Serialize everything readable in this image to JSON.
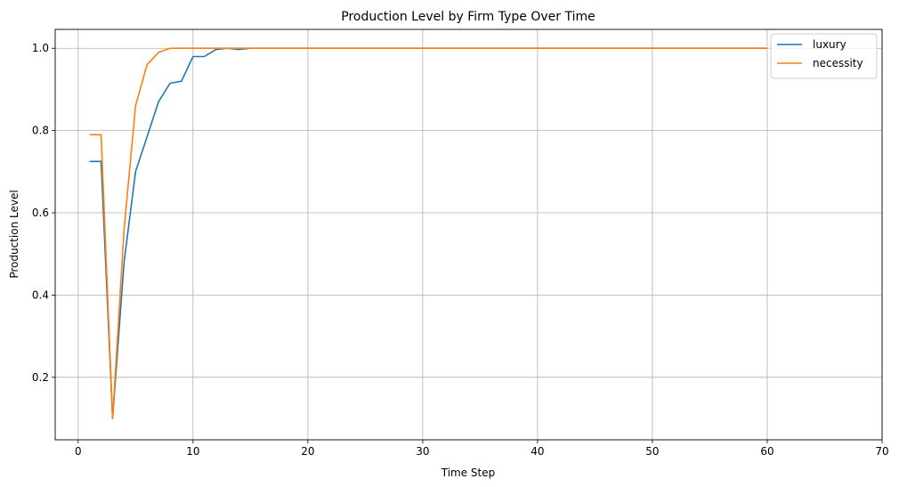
{
  "chart_data": {
    "type": "line",
    "title": "Production Level by Firm Type Over Time",
    "xlabel": "Time Step",
    "ylabel": "Production Level",
    "xlim": [
      -2,
      70
    ],
    "ylim": [
      0.048,
      1.046
    ],
    "xticks": [
      0,
      10,
      20,
      30,
      40,
      50,
      60,
      70
    ],
    "yticks": [
      0.2,
      0.4,
      0.6,
      0.8,
      1.0
    ],
    "xtick_labels": [
      "0",
      "10",
      "20",
      "30",
      "40",
      "50",
      "60",
      "70"
    ],
    "ytick_labels": [
      "0.2",
      "0.4",
      "0.6",
      "0.8",
      "1.0"
    ],
    "grid": true,
    "legend_position": "top-right",
    "series": [
      {
        "name": "luxury",
        "color": "#1f77b4",
        "x": [
          1,
          2,
          3,
          4,
          5,
          6,
          7,
          8,
          9,
          10,
          11,
          12,
          13,
          14,
          15,
          16,
          17,
          18,
          19,
          20,
          21,
          22,
          23,
          24,
          25,
          26,
          27,
          28,
          29,
          30,
          31,
          32,
          33,
          34,
          35,
          36,
          37,
          38,
          39,
          40,
          41,
          42,
          43,
          44,
          45,
          46,
          47,
          48,
          49,
          50,
          51,
          52,
          53,
          54,
          55,
          56,
          57,
          58,
          59,
          60
        ],
        "y": [
          0.725,
          0.725,
          0.1,
          0.48,
          0.7,
          0.785,
          0.87,
          0.915,
          0.92,
          0.98,
          0.98,
          0.997,
          1.0,
          0.997,
          1.0,
          1.0,
          1.0,
          1.0,
          1.0,
          1.0,
          1.0,
          1.0,
          1.0,
          1.0,
          1.0,
          1.0,
          1.0,
          1.0,
          1.0,
          1.0,
          1.0,
          1.0,
          1.0,
          1.0,
          1.0,
          1.0,
          1.0,
          1.0,
          1.0,
          1.0,
          1.0,
          1.0,
          1.0,
          1.0,
          1.0,
          1.0,
          1.0,
          1.0,
          1.0,
          1.0,
          1.0,
          1.0,
          1.0,
          1.0,
          1.0,
          1.0,
          1.0,
          1.0,
          1.0,
          1.0
        ]
      },
      {
        "name": "necessity",
        "color": "#ff7f0e",
        "x": [
          1,
          2,
          3,
          4,
          5,
          6,
          7,
          8,
          9,
          10,
          11,
          12,
          13,
          14,
          15,
          16,
          17,
          18,
          19,
          20,
          21,
          22,
          23,
          24,
          25,
          26,
          27,
          28,
          29,
          30,
          31,
          32,
          33,
          34,
          35,
          36,
          37,
          38,
          39,
          40,
          41,
          42,
          43,
          44,
          45,
          46,
          47,
          48,
          49,
          50,
          51,
          52,
          53,
          54,
          55,
          56,
          57,
          58,
          59,
          60
        ],
        "y": [
          0.79,
          0.79,
          0.1,
          0.56,
          0.86,
          0.96,
          0.99,
          1.0,
          1.0,
          1.0,
          1.0,
          1.0,
          1.0,
          1.0,
          1.0,
          1.0,
          1.0,
          1.0,
          1.0,
          1.0,
          1.0,
          1.0,
          1.0,
          1.0,
          1.0,
          1.0,
          1.0,
          1.0,
          1.0,
          1.0,
          1.0,
          1.0,
          1.0,
          1.0,
          1.0,
          1.0,
          1.0,
          1.0,
          1.0,
          1.0,
          1.0,
          1.0,
          1.0,
          1.0,
          1.0,
          1.0,
          1.0,
          1.0,
          1.0,
          1.0,
          1.0,
          1.0,
          1.0,
          1.0,
          1.0,
          1.0,
          1.0,
          1.0,
          1.0,
          1.0
        ]
      }
    ]
  }
}
